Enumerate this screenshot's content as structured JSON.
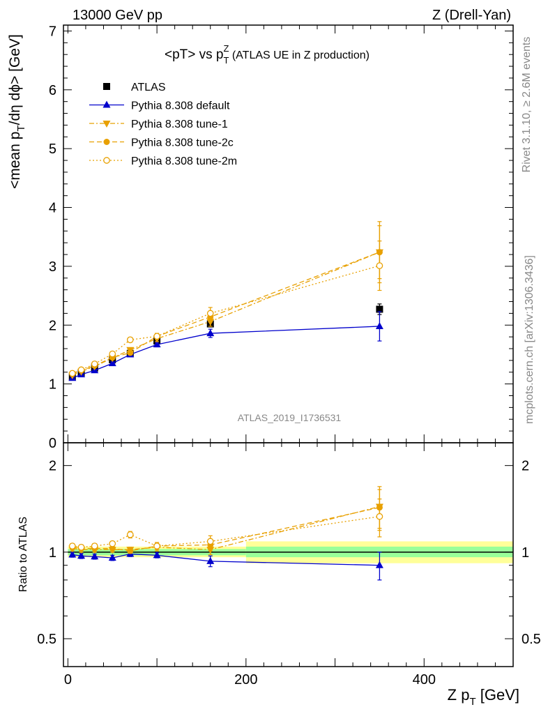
{
  "header": {
    "left": "13000 GeV pp",
    "right": "Z (Drell-Yan)"
  },
  "side_labels": {
    "rivet": "Rivet 3.1.10, ≥ 2.6M events",
    "mcplots": "mcplots.cern.ch [arXiv:1306.3436]"
  },
  "watermark": "ATLAS_2019_I1736531",
  "chart_data": [
    {
      "type": "line",
      "title_main": "<pT> vs p",
      "title_sup": "Z",
      "title_sub": "T",
      "title_rest": " (ATLAS UE in Z production)",
      "ylabel_main": "<mean p",
      "ylabel_sub": "T",
      "ylabel_rest": "/dη dϕ> [GeV]",
      "xlim": [
        -5,
        500
      ],
      "ylim": [
        0,
        7.1
      ],
      "y_ticks": [
        0,
        1,
        2,
        3,
        4,
        5,
        6,
        7
      ],
      "y_tick_labels": [
        "0",
        "1",
        "2",
        "3",
        "4",
        "5",
        "6",
        "7"
      ],
      "legend_position": "top-left",
      "x": [
        5,
        15,
        30,
        50,
        70,
        100,
        160,
        350
      ],
      "series": [
        {
          "name": "ATLAS",
          "color": "#000000",
          "marker": "square",
          "style": "none",
          "values": [
            1.12,
            1.19,
            1.27,
            1.41,
            1.52,
            1.73,
            2.02,
            2.27
          ],
          "errors": [
            0.02,
            0.02,
            0.02,
            0.03,
            0.03,
            0.04,
            0.05,
            0.09
          ]
        },
        {
          "name": "Pythia 8.308 default",
          "color": "#0000cc",
          "marker": "triangle-up",
          "style": "solid",
          "values": [
            1.1,
            1.16,
            1.23,
            1.35,
            1.5,
            1.67,
            1.86,
            1.98
          ],
          "errors": [
            0.02,
            0.02,
            0.02,
            0.03,
            0.03,
            0.04,
            0.07,
            0.25
          ]
        },
        {
          "name": "Pythia 8.308 tune-1",
          "color": "#e8a000",
          "marker": "triangle-down",
          "style": "dashdot",
          "values": [
            1.15,
            1.21,
            1.3,
            1.44,
            1.58,
            1.77,
            2.06,
            3.24
          ],
          "errors": [
            0.02,
            0.02,
            0.02,
            0.03,
            0.03,
            0.05,
            0.08,
            0.52
          ]
        },
        {
          "name": "Pythia 8.308 tune-2c",
          "color": "#e8a000",
          "marker": "circle",
          "style": "dashed",
          "values": [
            1.17,
            1.23,
            1.31,
            1.45,
            1.53,
            1.81,
            2.14,
            3.24
          ],
          "errors": [
            0.02,
            0.02,
            0.02,
            0.03,
            0.03,
            0.05,
            0.09,
            0.45
          ]
        },
        {
          "name": "Pythia 8.308 tune-2m",
          "color": "#e8a000",
          "marker": "open-circle",
          "style": "dotted",
          "values": [
            1.18,
            1.24,
            1.34,
            1.51,
            1.75,
            1.81,
            2.2,
            3.01
          ],
          "errors": [
            0.02,
            0.02,
            0.02,
            0.03,
            0.04,
            0.05,
            0.1,
            0.42
          ]
        }
      ]
    },
    {
      "type": "line",
      "xlabel_main": "Z p",
      "xlabel_sub": "T",
      "xlabel_rest": " [GeV]",
      "ylabel": "Ratio to ATLAS",
      "y_scale": "log",
      "xlim": [
        -5,
        500
      ],
      "ylim": [
        0.4,
        2.4
      ],
      "x_ticks": [
        0,
        200,
        400
      ],
      "x_tick_labels": [
        "0",
        "200",
        "400"
      ],
      "y_ticks": [
        0.5,
        1,
        2
      ],
      "y_tick_labels": [
        "0.5",
        "1",
        "2"
      ],
      "uncertainty_bands": [
        {
          "x": [
            0,
            200
          ],
          "inner": [
            0.975,
            1.025
          ],
          "outer": [
            0.96,
            1.045
          ]
        },
        {
          "x": [
            200,
            500
          ],
          "inner": [
            0.96,
            1.045
          ],
          "outer": [
            0.915,
            1.09
          ]
        }
      ],
      "band_colors": {
        "inner": "#99ff99",
        "outer": "#ffff99"
      },
      "x": [
        5,
        15,
        30,
        50,
        70,
        100,
        160,
        350
      ],
      "series": [
        {
          "name": "Pythia 8.308 default",
          "color": "#0000cc",
          "marker": "triangle-up",
          "style": "solid",
          "values": [
            0.98,
            0.97,
            0.965,
            0.955,
            0.985,
            0.975,
            0.93,
            0.9
          ],
          "errors": [
            0.02,
            0.02,
            0.02,
            0.02,
            0.02,
            0.02,
            0.04,
            0.1
          ]
        },
        {
          "name": "Pythia 8.308 tune-1",
          "color": "#e8a000",
          "marker": "triangle-down",
          "style": "dashdot",
          "values": [
            1.03,
            1.02,
            1.02,
            1.02,
            1.02,
            1.04,
            1.02,
            1.44
          ],
          "errors": [
            0.02,
            0.02,
            0.02,
            0.02,
            0.02,
            0.03,
            0.04,
            0.25
          ]
        },
        {
          "name": "Pythia 8.308 tune-2c",
          "color": "#e8a000",
          "marker": "circle",
          "style": "dashed",
          "values": [
            1.04,
            1.03,
            1.03,
            1.03,
            1.01,
            1.05,
            1.06,
            1.43
          ],
          "errors": [
            0.02,
            0.02,
            0.02,
            0.02,
            0.02,
            0.03,
            0.05,
            0.22
          ]
        },
        {
          "name": "Pythia 8.308 tune-2m",
          "color": "#e8a000",
          "marker": "open-circle",
          "style": "dotted",
          "values": [
            1.05,
            1.04,
            1.05,
            1.07,
            1.15,
            1.05,
            1.09,
            1.33
          ],
          "errors": [
            0.02,
            0.02,
            0.02,
            0.02,
            0.03,
            0.03,
            0.05,
            0.2
          ]
        }
      ]
    }
  ]
}
